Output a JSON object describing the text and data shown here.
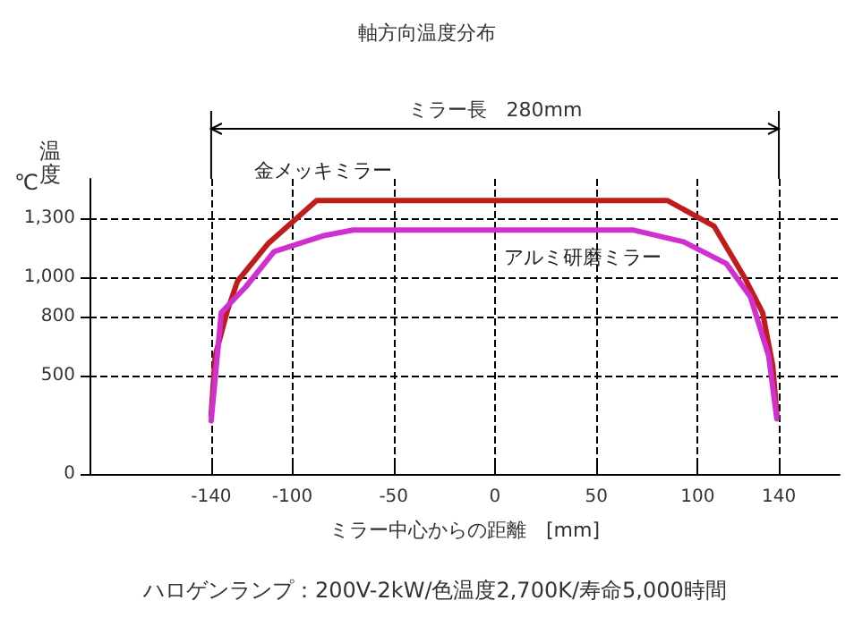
{
  "chart_data": {
    "type": "line",
    "title": "軸方向温度分布",
    "xlabel": "ミラー中心からの距離　[mm]",
    "ylabel": "温度",
    "annotations": [
      "ミラー長　280mm",
      "℃",
      "ハロゲンランプ：200V-2kW/色温度2,700K/寿命5,000時間"
    ],
    "series": [
      {
        "name": "金メッキミラー",
        "color": "#c01c1c",
        "x": [
          -140,
          -138,
          -132,
          -127,
          -112,
          -88,
          0,
          85,
          108,
          123,
          132,
          137,
          139
        ],
        "values": [
          300,
          600,
          830,
          980,
          1170,
          1390,
          1390,
          1390,
          1260,
          1000,
          820,
          550,
          300
        ]
      },
      {
        "name": "アルミ研磨ミラー",
        "color": "#d030d0",
        "x": [
          -140,
          -135,
          -123,
          -109,
          -85,
          -70,
          0,
          68,
          93,
          114,
          126,
          135,
          139
        ],
        "values": [
          270,
          820,
          950,
          1130,
          1210,
          1240,
          1240,
          1240,
          1180,
          1070,
          900,
          600,
          280
        ]
      }
    ],
    "xlim": [
      -200,
      170
    ],
    "xticks": [
      -140,
      -100,
      -50,
      0,
      50,
      100,
      140
    ],
    "ylim": [
      0,
      1500
    ],
    "yticks": [
      0,
      500,
      {
        "value": 800,
        "label": "800"
      },
      {
        "value": 1000,
        "label": "1,000"
      },
      {
        "value": 1300,
        "label": "1,300"
      }
    ],
    "grid": true,
    "legend": false,
    "marker": "none",
    "line_style": "solid"
  }
}
